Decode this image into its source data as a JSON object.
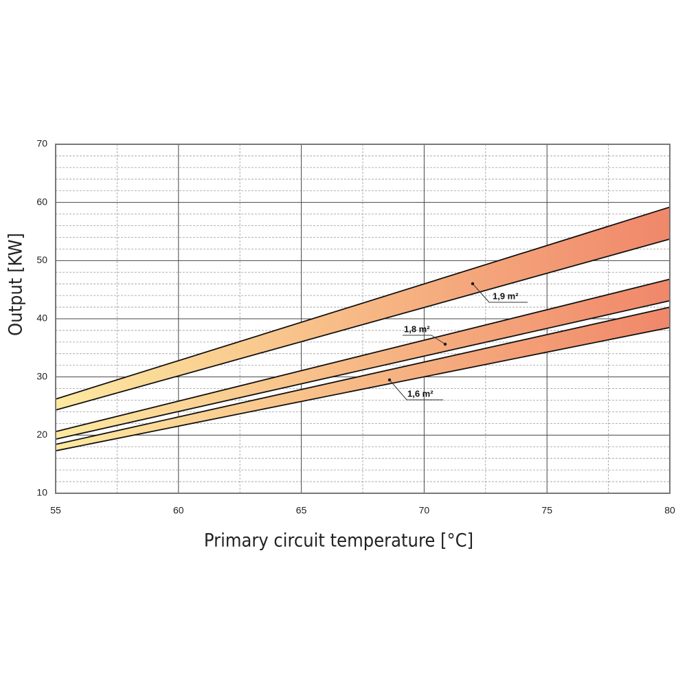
{
  "chart_data": {
    "type": "band",
    "x_label": "Primary circuit temperature [°C]",
    "y_label": "Output [KW]",
    "x": [
      55,
      80
    ],
    "series": [
      {
        "name": "1,9 m²",
        "upper": [
          26.2,
          59.2
        ],
        "lower": [
          24.3,
          53.7
        ]
      },
      {
        "name": "1,8 m²",
        "upper": [
          20.6,
          46.8
        ],
        "lower": [
          19.3,
          43.1
        ]
      },
      {
        "name": "1,6 m²",
        "upper": [
          18.4,
          42.0
        ],
        "lower": [
          17.3,
          38.5
        ]
      }
    ],
    "gradient": [
      "#fde9a0",
      "#f0876a"
    ],
    "xlim": [
      55,
      80
    ],
    "ylim": [
      10,
      70
    ],
    "xticks": [
      55,
      60,
      65,
      70,
      75,
      80
    ],
    "yticks": [
      10,
      20,
      30,
      40,
      50,
      60,
      70
    ],
    "x_minor_ticks": [
      57.5,
      62.5,
      67.5,
      72.5,
      77.5
    ],
    "y_minor_ticks": [
      12,
      14,
      16,
      18,
      22,
      24,
      26,
      28,
      32,
      34,
      36,
      38,
      42,
      44,
      46,
      48,
      52,
      54,
      56,
      58,
      62,
      64,
      66,
      68
    ],
    "grid": true
  }
}
